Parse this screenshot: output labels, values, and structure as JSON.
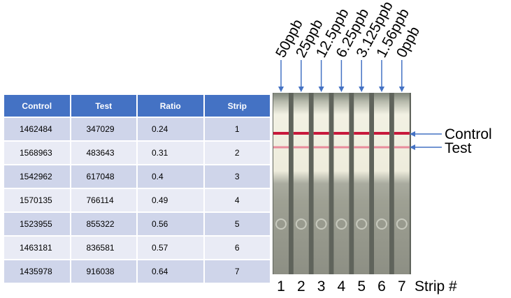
{
  "table": {
    "headers": [
      "Control",
      "Test",
      "Ratio",
      "Strip"
    ],
    "rows": [
      [
        "1462484",
        "347029",
        "0.24",
        "1"
      ],
      [
        "1568963",
        "483643",
        "0.31",
        "2"
      ],
      [
        "1542962",
        "617048",
        "0.4",
        "3"
      ],
      [
        "1570135",
        "766114",
        "0.49",
        "4"
      ],
      [
        "1523955",
        "855322",
        "0.56",
        "5"
      ],
      [
        "1463181",
        "836581",
        "0.57",
        "6"
      ],
      [
        "1435978",
        "916038",
        "0.64",
        "7"
      ]
    ]
  },
  "strips": {
    "concentrations": [
      "50ppb",
      "25ppb",
      "12.5ppb",
      "6.25ppb",
      "3.125ppb",
      "1.56ppb",
      "0ppb"
    ],
    "numbers": [
      "1",
      "2",
      "3",
      "4",
      "5",
      "6",
      "7"
    ],
    "strip_axis_label": "Strip #",
    "control_label": "Control",
    "test_label": "Test",
    "colors": {
      "arrow": "#4472c4",
      "header": "#4472c4",
      "control_band": "#c8193c",
      "test_band": "#e67a90"
    }
  }
}
